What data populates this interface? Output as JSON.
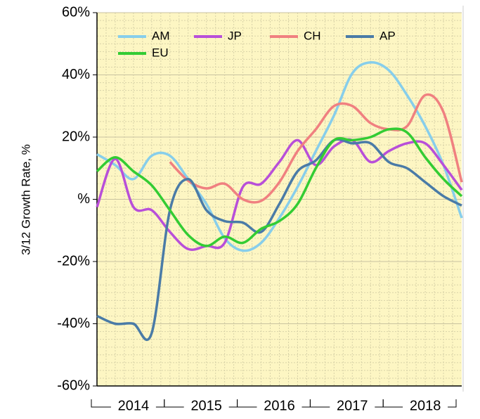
{
  "chart_data": {
    "type": "line",
    "y_label": "3/12 Growth Rate, %",
    "categories": [
      "2014",
      "2015",
      "2016",
      "2017",
      "2018"
    ],
    "x": [
      2014,
      2014.25,
      2014.5,
      2014.75,
      2015,
      2015.25,
      2015.5,
      2015.75,
      2016,
      2016.25,
      2016.5,
      2016.75,
      2017,
      2017.25,
      2017.5,
      2017.75,
      2018,
      2018.25,
      2018.5,
      2018.75,
      2019
    ],
    "xlim": [
      2014,
      2019
    ],
    "ylim": [
      -60,
      60
    ],
    "yticks": [
      {
        "value": -60,
        "label": "-60%"
      },
      {
        "value": -40,
        "label": "-40%"
      },
      {
        "value": -20,
        "label": "-20%"
      },
      {
        "value": 0,
        "label": "%"
      },
      {
        "value": 20,
        "label": "20%"
      },
      {
        "value": 40,
        "label": "40%"
      },
      {
        "value": 60,
        "label": "60%"
      }
    ],
    "grid": true,
    "legend": "upper left",
    "series": [
      {
        "name": "AM",
        "color": "#87ceeb",
        "values": [
          14.5,
          11,
          6.5,
          14,
          14,
          6.5,
          -1.5,
          -12.5,
          -16.5,
          -14,
          -6,
          4,
          15.5,
          27,
          40.5,
          44,
          41.5,
          33.5,
          23.5,
          11,
          -6
        ]
      },
      {
        "name": "JP",
        "color": "#b84fd9",
        "values": [
          -2.5,
          13,
          -2.5,
          -3.5,
          -10.5,
          -16,
          -15,
          -14,
          4,
          5,
          12,
          19,
          11,
          17,
          19,
          12,
          15.5,
          18,
          18,
          11,
          3
        ]
      },
      {
        "name": "CH",
        "color": "#f08080",
        "values": [
          null,
          null,
          null,
          null,
          12,
          6,
          3.5,
          5,
          0,
          -0.5,
          5.5,
          15.5,
          22.5,
          30,
          30,
          24.5,
          22.5,
          23.5,
          33.5,
          28,
          5.5
        ]
      },
      {
        "name": "AP",
        "color": "#4a7ba7",
        "values": [
          -37.5,
          -40,
          -40,
          -43,
          -3.5,
          6.5,
          -3.5,
          -7,
          -7.5,
          -10.5,
          -1.5,
          9,
          12.5,
          19,
          18,
          18,
          12,
          10,
          5.5,
          1,
          -2
        ]
      },
      {
        "name": "EU",
        "color": "#33cc33",
        "values": [
          9,
          13.5,
          9,
          4.5,
          -3.5,
          -11.5,
          -15,
          -12,
          -14,
          -9.5,
          -7,
          -1.5,
          10,
          19,
          19,
          20,
          22.5,
          21.5,
          13.5,
          6.5,
          1
        ]
      }
    ]
  }
}
